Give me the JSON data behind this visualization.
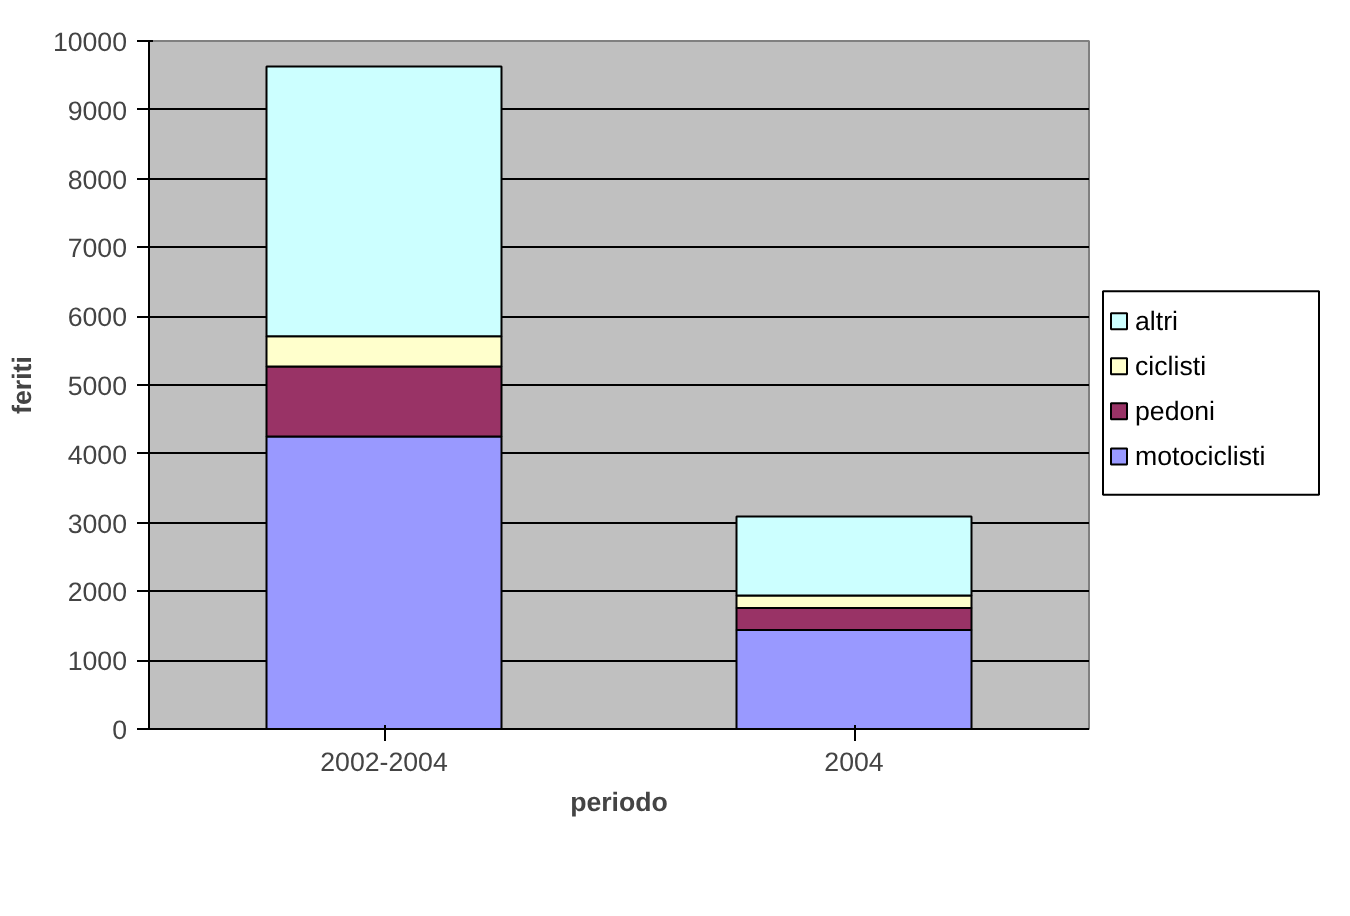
{
  "chart_data": {
    "type": "bar",
    "stacked": true,
    "xlabel": "periodo",
    "ylabel": "feriti",
    "categories": [
      "2002-2004",
      "2004"
    ],
    "series": [
      {
        "name": "motociclisti",
        "color": "#9999ff",
        "values": [
          4250,
          1440
        ]
      },
      {
        "name": "pedoni",
        "color": "#993366",
        "values": [
          1020,
          320
        ]
      },
      {
        "name": "ciclisti",
        "color": "#ffffcc",
        "values": [
          440,
          180
        ]
      },
      {
        "name": "altri",
        "color": "#ccffff",
        "values": [
          3920,
          1150
        ]
      }
    ],
    "ylim": [
      0,
      10000
    ],
    "yticks": [
      0,
      1000,
      2000,
      3000,
      4000,
      5000,
      6000,
      7000,
      8000,
      9000,
      10000
    ],
    "grid": "y",
    "legend": "right"
  }
}
